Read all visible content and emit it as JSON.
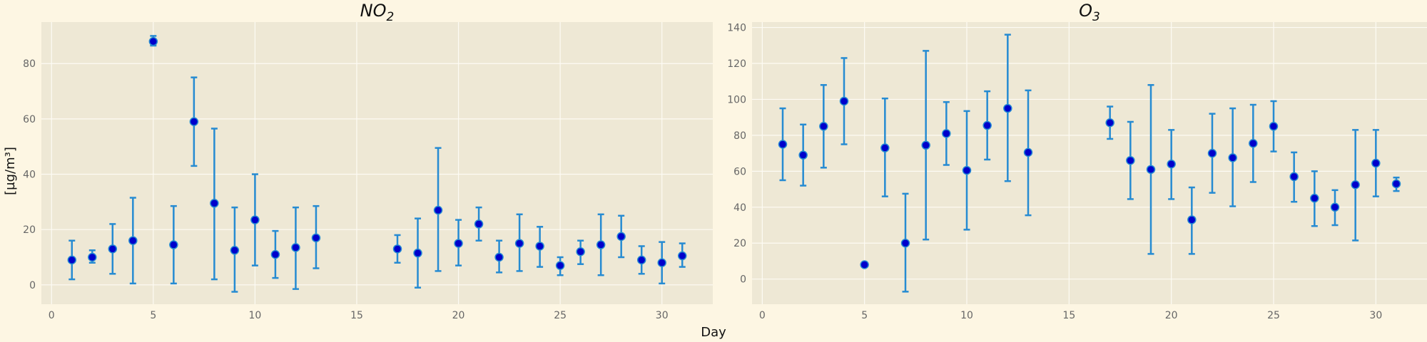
{
  "figure": {
    "xlabel": "Day",
    "ylabel": "[µg/m³]"
  },
  "colors": {
    "page_bg": "#fdf6e3",
    "plot_bg": "#eee8d5",
    "grid": "#fdfbf4",
    "errorbar": "#268bd2",
    "marker_fill": "#0000cc",
    "marker_edge": "#268bd2",
    "tick_text": "#666666"
  },
  "chart_data": [
    {
      "type": "scatter",
      "title_base": "NO",
      "title_sub": "2",
      "xlim": [
        -0.5,
        32.5
      ],
      "ylim": [
        -7,
        95
      ],
      "xticks": [
        0,
        5,
        10,
        15,
        20,
        25,
        30
      ],
      "yticks": [
        0,
        20,
        40,
        60,
        80
      ],
      "grid": true,
      "points": [
        {
          "x": 1,
          "y": 9,
          "lo": 2,
          "hi": 16
        },
        {
          "x": 2,
          "y": 10,
          "lo": 8,
          "hi": 12.5
        },
        {
          "x": 3,
          "y": 13,
          "lo": 4,
          "hi": 22
        },
        {
          "x": 4,
          "y": 16,
          "lo": 0.5,
          "hi": 31.5
        },
        {
          "x": 5,
          "y": 88,
          "lo": 86.5,
          "hi": 90
        },
        {
          "x": 6,
          "y": 14.5,
          "lo": 0.5,
          "hi": 28.5
        },
        {
          "x": 7,
          "y": 59,
          "lo": 43,
          "hi": 75
        },
        {
          "x": 8,
          "y": 29.5,
          "lo": 2,
          "hi": 56.5
        },
        {
          "x": 9,
          "y": 12.5,
          "lo": -2.5,
          "hi": 28
        },
        {
          "x": 10,
          "y": 23.5,
          "lo": 7,
          "hi": 40
        },
        {
          "x": 11,
          "y": 11,
          "lo": 2.5,
          "hi": 19.5
        },
        {
          "x": 12,
          "y": 13.5,
          "lo": -1.5,
          "hi": 28
        },
        {
          "x": 13,
          "y": 17,
          "lo": 6,
          "hi": 28.5
        },
        {
          "x": 17,
          "y": 13,
          "lo": 8,
          "hi": 18
        },
        {
          "x": 18,
          "y": 11.5,
          "lo": -1,
          "hi": 24
        },
        {
          "x": 19,
          "y": 27,
          "lo": 5,
          "hi": 49.5
        },
        {
          "x": 20,
          "y": 15,
          "lo": 7,
          "hi": 23.5
        },
        {
          "x": 21,
          "y": 22,
          "lo": 16,
          "hi": 28
        },
        {
          "x": 22,
          "y": 10,
          "lo": 4.5,
          "hi": 16
        },
        {
          "x": 23,
          "y": 15,
          "lo": 5,
          "hi": 25.5
        },
        {
          "x": 24,
          "y": 14,
          "lo": 6.5,
          "hi": 21
        },
        {
          "x": 25,
          "y": 7,
          "lo": 3.5,
          "hi": 10
        },
        {
          "x": 26,
          "y": 12,
          "lo": 7.5,
          "hi": 16
        },
        {
          "x": 27,
          "y": 14.5,
          "lo": 3.5,
          "hi": 25.5
        },
        {
          "x": 28,
          "y": 17.5,
          "lo": 10,
          "hi": 25
        },
        {
          "x": 29,
          "y": 9,
          "lo": 4,
          "hi": 14
        },
        {
          "x": 30,
          "y": 8,
          "lo": 0.5,
          "hi": 15.5
        },
        {
          "x": 31,
          "y": 10.5,
          "lo": 6.5,
          "hi": 15
        }
      ]
    },
    {
      "type": "scatter",
      "title_base": "O",
      "title_sub": "3",
      "xlim": [
        -0.5,
        32.5
      ],
      "ylim": [
        -14,
        143
      ],
      "xticks": [
        0,
        5,
        10,
        15,
        20,
        25,
        30
      ],
      "yticks": [
        0,
        20,
        40,
        60,
        80,
        100,
        120,
        140
      ],
      "grid": true,
      "points": [
        {
          "x": 1,
          "y": 75,
          "lo": 55,
          "hi": 95
        },
        {
          "x": 2,
          "y": 69,
          "lo": 52,
          "hi": 86
        },
        {
          "x": 3,
          "y": 85,
          "lo": 62,
          "hi": 108
        },
        {
          "x": 4,
          "y": 99,
          "lo": 75,
          "hi": 123
        },
        {
          "x": 5,
          "y": 8,
          "lo": 7.5,
          "hi": 8.5
        },
        {
          "x": 6,
          "y": 73,
          "lo": 46,
          "hi": 100.5
        },
        {
          "x": 7,
          "y": 20,
          "lo": -7,
          "hi": 47.5
        },
        {
          "x": 8,
          "y": 74.5,
          "lo": 22,
          "hi": 127
        },
        {
          "x": 9,
          "y": 81,
          "lo": 63.5,
          "hi": 98.5
        },
        {
          "x": 10,
          "y": 60.5,
          "lo": 27.5,
          "hi": 93.5
        },
        {
          "x": 11,
          "y": 85.5,
          "lo": 66.5,
          "hi": 104.5
        },
        {
          "x": 12,
          "y": 95,
          "lo": 54.5,
          "hi": 136
        },
        {
          "x": 13,
          "y": 70.5,
          "lo": 35.5,
          "hi": 105
        },
        {
          "x": 17,
          "y": 87,
          "lo": 78,
          "hi": 96
        },
        {
          "x": 18,
          "y": 66,
          "lo": 44.5,
          "hi": 87.5
        },
        {
          "x": 19,
          "y": 61,
          "lo": 14,
          "hi": 108
        },
        {
          "x": 20,
          "y": 64,
          "lo": 44.5,
          "hi": 83
        },
        {
          "x": 21,
          "y": 33,
          "lo": 14,
          "hi": 51
        },
        {
          "x": 22,
          "y": 70,
          "lo": 48,
          "hi": 92
        },
        {
          "x": 23,
          "y": 67.5,
          "lo": 40.5,
          "hi": 95
        },
        {
          "x": 24,
          "y": 75.5,
          "lo": 54,
          "hi": 97
        },
        {
          "x": 25,
          "y": 85,
          "lo": 71,
          "hi": 99
        },
        {
          "x": 26,
          "y": 57,
          "lo": 43,
          "hi": 70.5
        },
        {
          "x": 27,
          "y": 45,
          "lo": 29.5,
          "hi": 60
        },
        {
          "x": 28,
          "y": 40,
          "lo": 30,
          "hi": 49.5
        },
        {
          "x": 29,
          "y": 52.5,
          "lo": 21.5,
          "hi": 83
        },
        {
          "x": 30,
          "y": 64.5,
          "lo": 46,
          "hi": 83
        },
        {
          "x": 31,
          "y": 53,
          "lo": 49,
          "hi": 56.5
        }
      ]
    }
  ]
}
